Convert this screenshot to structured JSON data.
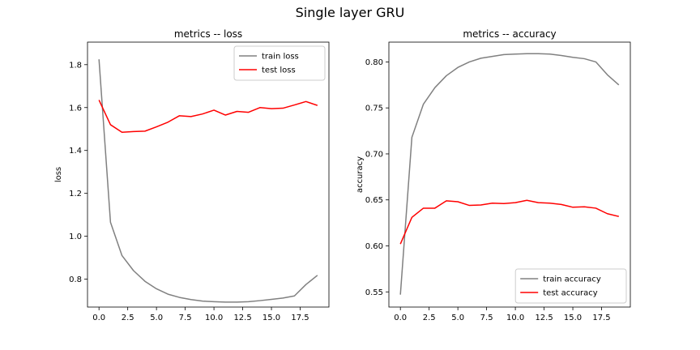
{
  "figure": {
    "title": "Single layer GRU"
  },
  "chart_data": [
    {
      "type": "line",
      "title": "metrics -- loss",
      "xlabel": "",
      "ylabel": "loss",
      "xlim": [
        -1,
        20
      ],
      "ylim": [
        0.67,
        1.905
      ],
      "xticks": [
        0,
        2.5,
        5,
        7.5,
        10,
        12.5,
        15,
        17.5
      ],
      "xtick_labels": [
        "0.0",
        "2.5",
        "5.0",
        "7.5",
        "10.0",
        "12.5",
        "15.0",
        "17.5"
      ],
      "yticks": [
        0.8,
        1.0,
        1.2,
        1.4,
        1.6,
        1.8
      ],
      "ytick_labels": [
        "0.8",
        "1.0",
        "1.2",
        "1.4",
        "1.6",
        "1.8"
      ],
      "legend": "upper right",
      "grid": false,
      "x": [
        0,
        1,
        2,
        3,
        4,
        5,
        6,
        7,
        8,
        9,
        10,
        11,
        12,
        13,
        14,
        15,
        16,
        17,
        18,
        19
      ],
      "series": [
        {
          "name": "train loss",
          "color": "#808080",
          "values": [
            1.825,
            1.065,
            0.91,
            0.84,
            0.79,
            0.755,
            0.73,
            0.715,
            0.705,
            0.698,
            0.695,
            0.693,
            0.693,
            0.695,
            0.7,
            0.706,
            0.712,
            0.722,
            0.775,
            0.818
          ]
        },
        {
          "name": "test loss",
          "color": "#ff0000",
          "values": [
            1.635,
            1.52,
            1.485,
            1.488,
            1.49,
            1.51,
            1.532,
            1.562,
            1.558,
            1.57,
            1.588,
            1.565,
            1.582,
            1.578,
            1.6,
            1.595,
            1.597,
            1.612,
            1.628,
            1.61
          ]
        }
      ]
    },
    {
      "type": "line",
      "title": "metrics -- accuracy",
      "xlabel": "",
      "ylabel": "accuracy",
      "xlim": [
        -1,
        20
      ],
      "ylim": [
        0.5335,
        0.8215
      ],
      "xticks": [
        0,
        2.5,
        5,
        7.5,
        10,
        12.5,
        15,
        17.5
      ],
      "xtick_labels": [
        "0.0",
        "2.5",
        "5.0",
        "7.5",
        "10.0",
        "12.5",
        "15.0",
        "17.5"
      ],
      "yticks": [
        0.55,
        0.6,
        0.65,
        0.7,
        0.75,
        0.8
      ],
      "ytick_labels": [
        "0.55",
        "0.60",
        "0.65",
        "0.70",
        "0.75",
        "0.80"
      ],
      "legend": "lower right",
      "grid": false,
      "x": [
        0,
        1,
        2,
        3,
        4,
        5,
        6,
        7,
        8,
        9,
        10,
        11,
        12,
        13,
        14,
        15,
        16,
        17,
        18,
        19
      ],
      "series": [
        {
          "name": "train accuracy",
          "color": "#808080",
          "values": [
            0.547,
            0.718,
            0.754,
            0.772,
            0.785,
            0.794,
            0.8,
            0.804,
            0.806,
            0.808,
            0.8085,
            0.809,
            0.809,
            0.8085,
            0.807,
            0.805,
            0.8035,
            0.8,
            0.786,
            0.775
          ]
        },
        {
          "name": "test accuracy",
          "color": "#ff0000",
          "values": [
            0.602,
            0.631,
            0.641,
            0.641,
            0.649,
            0.648,
            0.644,
            0.6445,
            0.6465,
            0.646,
            0.647,
            0.6495,
            0.647,
            0.6465,
            0.645,
            0.642,
            0.6425,
            0.641,
            0.635,
            0.632
          ]
        }
      ]
    }
  ]
}
